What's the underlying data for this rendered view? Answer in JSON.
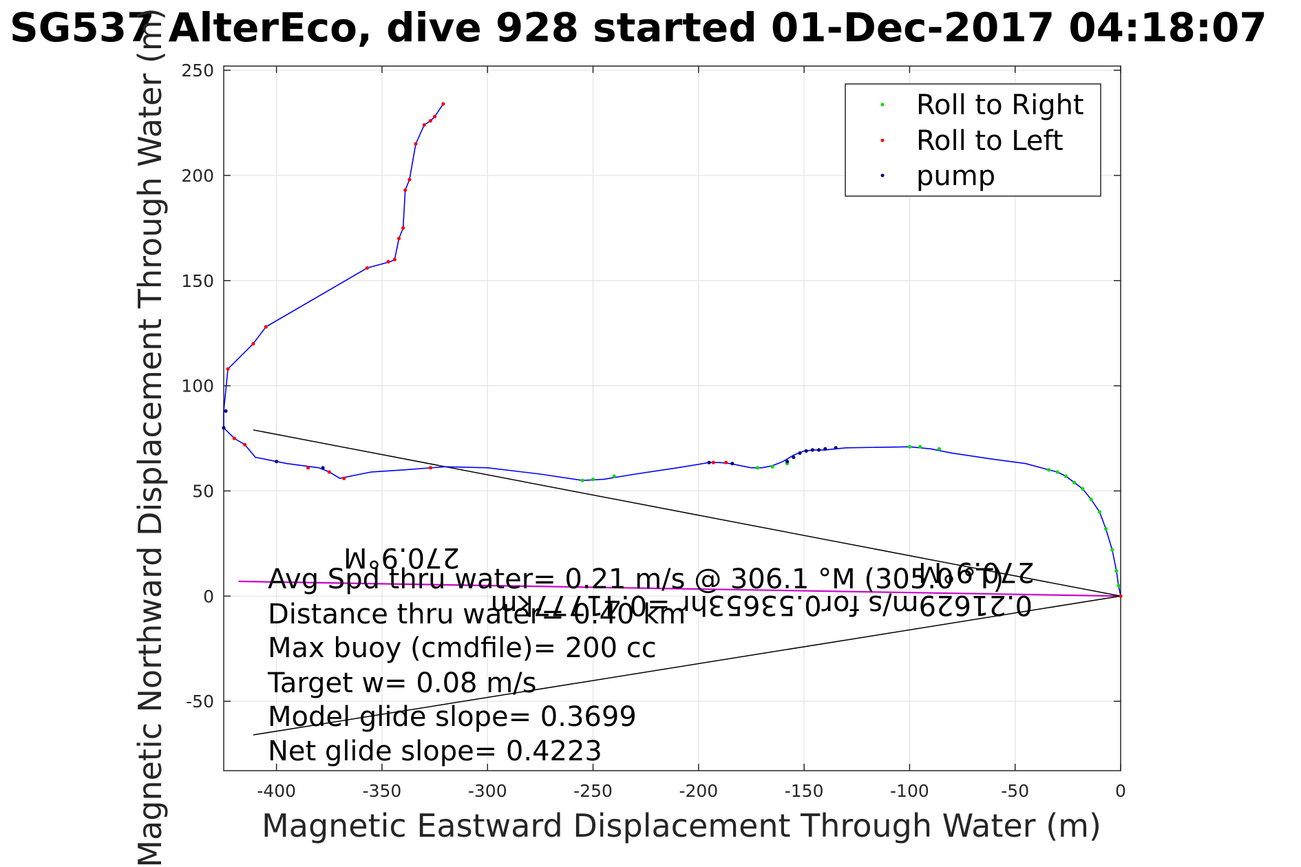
{
  "chart_data": {
    "type": "line",
    "title": "SG537 AlterEco, dive 928 started 01-Dec-2017 04:18:07",
    "xlabel": "Magnetic Eastward Displacement Through Water (m)",
    "ylabel": "Magnetic Northward Displacement Through Water (m)",
    "xlim": [
      -425,
      0
    ],
    "ylim": [
      -83,
      252
    ],
    "xticks": [
      -400,
      -350,
      -300,
      -250,
      -200,
      -150,
      -100,
      -50,
      0
    ],
    "yticks": [
      -50,
      0,
      50,
      100,
      150,
      200,
      250
    ],
    "grid": true,
    "legend_position": "top-right",
    "colors": {
      "track": "#0000ff",
      "roll_right": "#00dd00",
      "roll_left": "#ff0000",
      "pump": "#000080",
      "vector": "#cc00cc",
      "guide": "#000000"
    },
    "legend": [
      {
        "label": "Roll to Right",
        "color": "#00dd00"
      },
      {
        "label": "Roll to Left",
        "color": "#ff0000"
      },
      {
        "label": "pump",
        "color": "#000080"
      }
    ],
    "track": [
      [
        0,
        0
      ],
      [
        -1,
        5
      ],
      [
        -2,
        12
      ],
      [
        -4,
        22
      ],
      [
        -7,
        32
      ],
      [
        -10,
        40
      ],
      [
        -14,
        46
      ],
      [
        -18,
        51
      ],
      [
        -22,
        54
      ],
      [
        -26,
        57
      ],
      [
        -30,
        59
      ],
      [
        -34,
        60
      ],
      [
        -45,
        63
      ],
      [
        -60,
        65
      ],
      [
        -80,
        68
      ],
      [
        -90,
        70
      ],
      [
        -100,
        71
      ],
      [
        -130,
        70.5
      ],
      [
        -135,
        70
      ],
      [
        -140,
        69.5
      ],
      [
        -145,
        69.5
      ],
      [
        -150,
        69
      ],
      [
        -155,
        67
      ],
      [
        -160,
        64
      ],
      [
        -165,
        62
      ],
      [
        -170,
        61
      ],
      [
        -175,
        61
      ],
      [
        -180,
        62
      ],
      [
        -185,
        63
      ],
      [
        -190,
        63.5
      ],
      [
        -195,
        63.5
      ],
      [
        -210,
        61
      ],
      [
        -230,
        58
      ],
      [
        -245,
        55.5
      ],
      [
        -255,
        55
      ],
      [
        -275,
        58
      ],
      [
        -300,
        61
      ],
      [
        -320,
        61.5
      ],
      [
        -340,
        60
      ],
      [
        -355,
        59
      ],
      [
        -370,
        56
      ],
      [
        -375,
        59
      ],
      [
        -380,
        61
      ],
      [
        -395,
        63
      ],
      [
        -400,
        64
      ],
      [
        -410,
        66
      ],
      [
        -415,
        72
      ],
      [
        -420,
        75
      ],
      [
        -425,
        80
      ],
      [
        -425,
        88
      ],
      [
        -423,
        108
      ],
      [
        -411,
        120
      ],
      [
        -405,
        128
      ],
      [
        -357,
        156
      ],
      [
        -346,
        159
      ],
      [
        -344,
        160
      ],
      [
        -342,
        170
      ],
      [
        -340,
        175
      ],
      [
        -339,
        193
      ],
      [
        -337,
        198
      ],
      [
        -334,
        215
      ],
      [
        -330,
        224
      ],
      [
        -327,
        226
      ],
      [
        -325,
        228
      ],
      [
        -321,
        234
      ]
    ],
    "roll_right_points": [
      [
        -1,
        5
      ],
      [
        -2,
        12
      ],
      [
        -4,
        22
      ],
      [
        -7,
        32
      ],
      [
        -10,
        40
      ],
      [
        -14,
        46
      ],
      [
        -18,
        51
      ],
      [
        -22,
        54
      ],
      [
        -26,
        57
      ],
      [
        -30,
        59
      ],
      [
        -34,
        60
      ],
      [
        -86,
        70
      ],
      [
        -95,
        71
      ],
      [
        -100,
        71
      ],
      [
        -158,
        63
      ],
      [
        -165,
        61.5
      ],
      [
        -172,
        61
      ],
      [
        -240,
        57
      ],
      [
        -250,
        55.5
      ],
      [
        -255,
        55
      ]
    ],
    "roll_left_points": [
      [
        0,
        0
      ],
      [
        -187,
        63.5
      ],
      [
        -193,
        63.5
      ],
      [
        -327,
        61
      ],
      [
        -368,
        56
      ],
      [
        -375,
        59
      ],
      [
        -385,
        61
      ],
      [
        -415,
        72
      ],
      [
        -420,
        75
      ],
      [
        -423,
        108
      ],
      [
        -411,
        120
      ],
      [
        -405,
        128
      ],
      [
        -357,
        156
      ],
      [
        -347,
        159
      ],
      [
        -344,
        160
      ],
      [
        -342,
        170
      ],
      [
        -340,
        175
      ],
      [
        -339,
        193
      ],
      [
        -337,
        198
      ],
      [
        -334,
        215
      ],
      [
        -330,
        224
      ],
      [
        -327,
        226
      ],
      [
        -325,
        228
      ],
      [
        -321,
        234
      ]
    ],
    "pump_points": [
      [
        -135,
        70.5
      ],
      [
        -140,
        70
      ],
      [
        -143,
        69.5
      ],
      [
        -146,
        69.5
      ],
      [
        -149,
        69
      ],
      [
        -152,
        68
      ],
      [
        -155,
        66
      ],
      [
        -158,
        64
      ],
      [
        -184,
        63
      ],
      [
        -195,
        63.5
      ],
      [
        -400,
        64
      ],
      [
        -378,
        61
      ],
      [
        -425,
        80
      ],
      [
        -424,
        88
      ]
    ],
    "vectors": [
      {
        "from": [
          0,
          0
        ],
        "to": [
          -418,
          7
        ]
      },
      {
        "from": [
          0,
          0
        ],
        "to": [
          -411,
          79
        ]
      },
      {
        "from": [
          0,
          0
        ],
        "to": [
          -411,
          -66
        ]
      }
    ],
    "annotations": {
      "lines": [
        "Avg Spd thru water=  0.21 m/s @ 306.1 °M (305.0 °T)",
        "Distance thru water=  0.40 km",
        "Max buoy (cmdfile)= 200 cc",
        "Target w= 0.08 m/s",
        "Model glide slope= 0.3699",
        "Net glide slope= 0.4223"
      ],
      "flipped": [
        "270.9°M",
        "0.21629m/s for0.53653hr =0.41777km",
        "270.9°M"
      ]
    }
  }
}
